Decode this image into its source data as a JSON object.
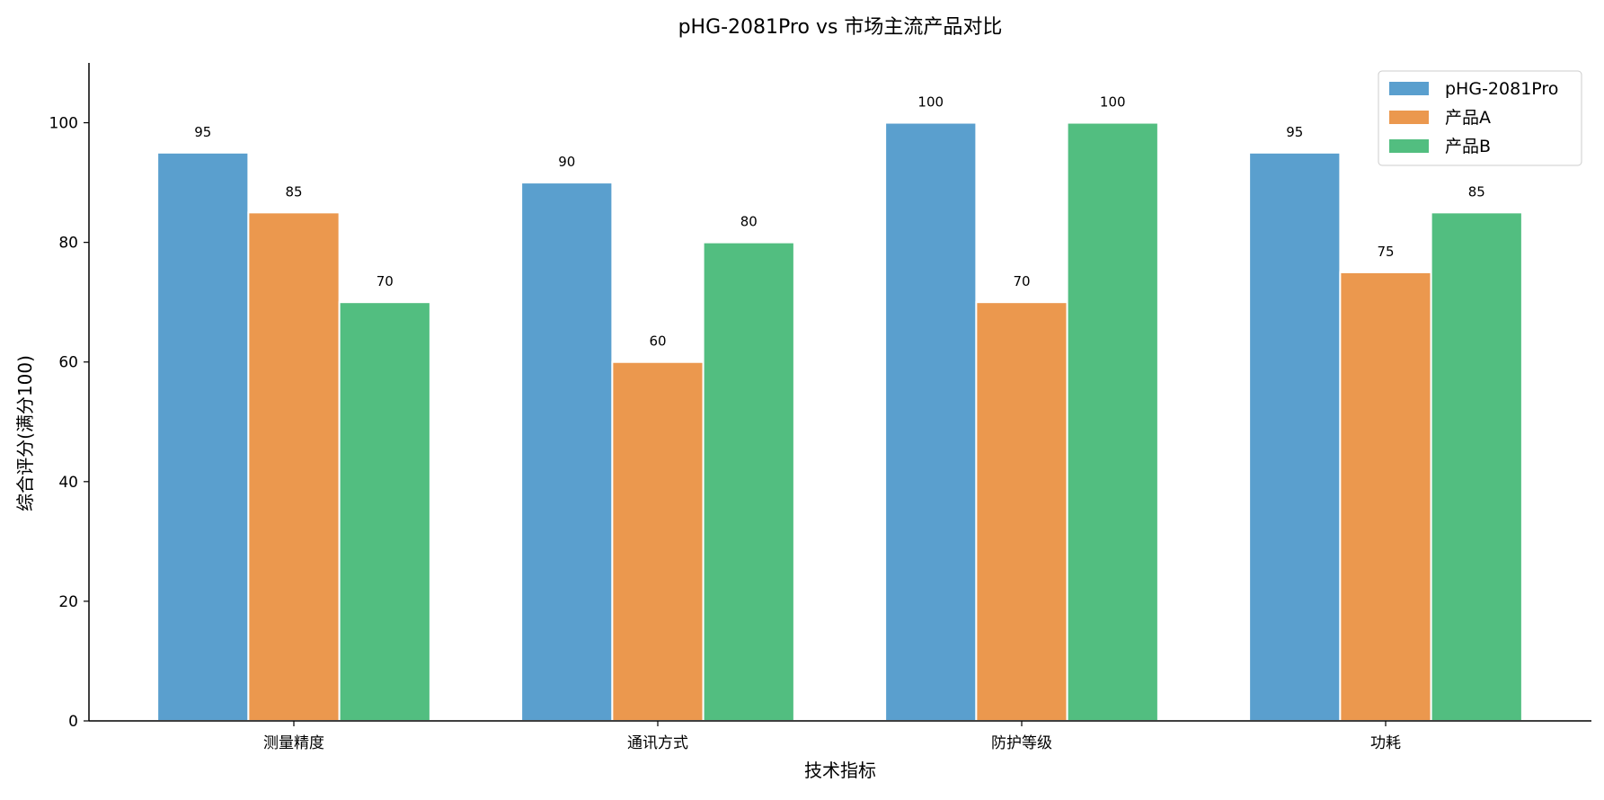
{
  "chart_data": {
    "type": "bar",
    "title": "pHG-2081Pro vs 市场主流产品对比",
    "xlabel": "技术指标",
    "ylabel": "综合评分(满分100)",
    "categories": [
      "测量精度",
      "通讯方式",
      "防护等级",
      "功耗"
    ],
    "series": [
      {
        "name": "pHG-2081Pro",
        "color": "#5a9fce",
        "values": [
          95,
          90,
          100,
          95
        ]
      },
      {
        "name": "产品A",
        "color": "#eb984e",
        "values": [
          85,
          60,
          70,
          75
        ]
      },
      {
        "name": "产品B",
        "color": "#52be80",
        "values": [
          70,
          80,
          100,
          85
        ]
      }
    ],
    "ylim": [
      0,
      110
    ],
    "yticks": [
      0,
      20,
      40,
      60,
      80,
      100
    ],
    "grid": false,
    "legend_position": "top-right",
    "data_labels": true
  }
}
